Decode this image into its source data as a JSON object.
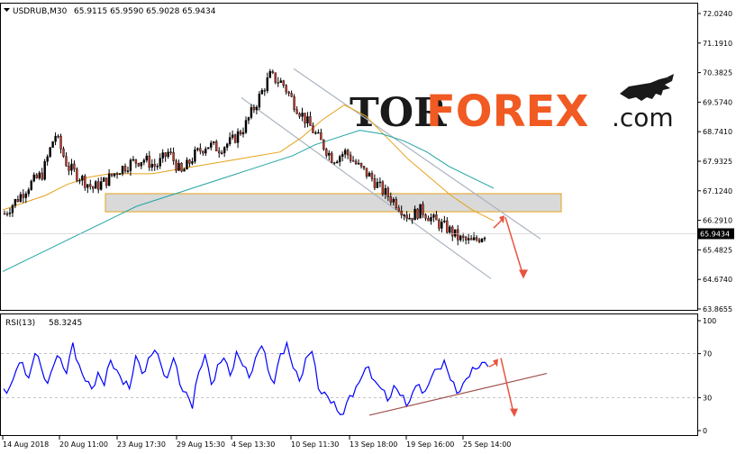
{
  "header": {
    "symbol_label": "USDRUB,M30",
    "ohlc_values": "65.9115 65.9590 65.9028 65.9434",
    "arrow_icon": "triangle-down-icon"
  },
  "logo": {
    "part1": "TOR",
    "part2": "FOREX",
    "part3": ".com",
    "icon": "bull-icon",
    "colors": {
      "dark": "#1a1a1a",
      "accent": "#f15a22"
    }
  },
  "chart_data": [
    {
      "type": "candlestick",
      "title": "USDRUB,M30",
      "ohlc_last": {
        "open": 65.9115,
        "high": 65.959,
        "low": 65.9028,
        "close": 65.9434
      },
      "current_price_label": "65.9434",
      "ylim": [
        63.8655,
        72.024
      ],
      "y_ticks": [
        "72.0240",
        "71.1910",
        "70.3825",
        "69.5740",
        "68.7410",
        "67.9325",
        "67.1240",
        "66.2910",
        "65.4825",
        "64.6740",
        "63.8655"
      ],
      "x_tick_labels": [
        "14 Aug 2018",
        "20 Aug 11:00",
        "23 Aug 17:30",
        "29 Aug 15:30",
        "4 Sep 13:30",
        "10 Sep 11:30",
        "13 Sep 18:00",
        "19 Sep 16:00",
        "25 Sep 14:00"
      ],
      "price_path": [
        66.5,
        66.9,
        67.3,
        67.6,
        68.7,
        67.8,
        67.5,
        67.2,
        67.4,
        67.7,
        67.9,
        68.0,
        67.8,
        68.2,
        67.6,
        68.1,
        68.4,
        68.3,
        68.5,
        68.9,
        69.6,
        70.3,
        70.1,
        69.5,
        69.0,
        68.5,
        68.0,
        68.2,
        67.8,
        67.5,
        67.1,
        66.8,
        66.4,
        66.6,
        66.3,
        66.1,
        65.8,
        65.7,
        65.9434
      ],
      "moving_averages": [
        {
          "color": "#e6a21a",
          "values": [
            66.6,
            66.8,
            67.0,
            67.3,
            67.5,
            67.6,
            67.6,
            67.6,
            67.7,
            67.8,
            67.9,
            68.0,
            68.1,
            68.2,
            68.6,
            69.1,
            69.5,
            69.2,
            68.6,
            68.0,
            67.5,
            67.0,
            66.6,
            66.3
          ]
        },
        {
          "color": "#1fa3a3",
          "values": [
            64.9,
            65.2,
            65.5,
            65.8,
            66.1,
            66.4,
            66.7,
            66.9,
            67.1,
            67.3,
            67.5,
            67.7,
            67.9,
            68.1,
            68.4,
            68.6,
            68.8,
            68.7,
            68.5,
            68.2,
            67.8,
            67.5,
            67.2
          ]
        }
      ],
      "support_zone": [
        66.55,
        67.05
      ],
      "channel_color": "#aab4c0",
      "forecast_arrow_color": "#e8543f"
    },
    {
      "type": "line",
      "title": "RSI(13)",
      "value_label": "58.3245",
      "ylim": [
        0,
        100
      ],
      "y_ticks": [
        "100",
        "70",
        "30",
        "0"
      ],
      "levels": [
        70,
        30
      ],
      "series_color": "#0000ff",
      "values": [
        38,
        40,
        55,
        62,
        48,
        70,
        57,
        43,
        60,
        66,
        52,
        80,
        60,
        45,
        38,
        53,
        41,
        64,
        55,
        42,
        38,
        68,
        52,
        66,
        73,
        60,
        48,
        66,
        42,
        35,
        20,
        53,
        69,
        42,
        60,
        66,
        50,
        72,
        59,
        48,
        66,
        77,
        55,
        43,
        70,
        80,
        57,
        45,
        66,
        72,
        38,
        35,
        25,
        18,
        15,
        32,
        40,
        50,
        58,
        45,
        38,
        27,
        41,
        32,
        22,
        35,
        42,
        36,
        49,
        56,
        64,
        46,
        34,
        43,
        49,
        56,
        62,
        58
      ],
      "trend_color": "#a0524d"
    }
  ]
}
